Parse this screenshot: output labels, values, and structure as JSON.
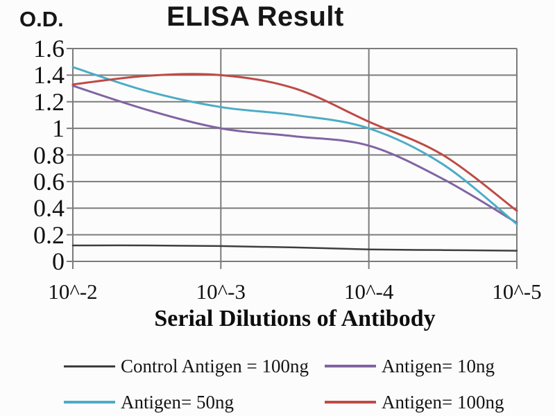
{
  "page": {
    "background": "#fcfcfc"
  },
  "chart_data": {
    "type": "line",
    "title": "ELISA Result",
    "ylabel": "O.D.",
    "xlabel": "Serial Dilutions of Antibody",
    "x_tick_labels": [
      "10^-2",
      "10^-3",
      "10^-4",
      "10^-5"
    ],
    "y_tick_labels": [
      "0",
      "0.2",
      "0.4",
      "0.6",
      "0.8",
      "1",
      "1.2",
      "1.4",
      "1.6"
    ],
    "ylim": [
      0,
      1.6
    ],
    "grid": true,
    "grid_color": "#7b7b7b",
    "legend_position": "bottom",
    "x_sample_positions": [
      0,
      0.5,
      1,
      1.5,
      2,
      2.5,
      3
    ],
    "series": [
      {
        "name": "Control Antigen = 100ng",
        "color": "#3d3d3d",
        "values": [
          0.12,
          0.12,
          0.115,
          0.105,
          0.09,
          0.085,
          0.08
        ]
      },
      {
        "name": "Antigen= 10ng",
        "color": "#8064a2",
        "values": [
          1.32,
          1.14,
          1.0,
          0.94,
          0.87,
          0.62,
          0.29
        ]
      },
      {
        "name": "Antigen= 50ng",
        "color": "#4bacc6",
        "values": [
          1.46,
          1.28,
          1.16,
          1.1,
          1.0,
          0.73,
          0.28
        ]
      },
      {
        "name": "Antigen= 100ng",
        "color": "#bf4a45",
        "values": [
          1.33,
          1.395,
          1.4,
          1.3,
          1.05,
          0.8,
          0.38
        ]
      }
    ]
  }
}
